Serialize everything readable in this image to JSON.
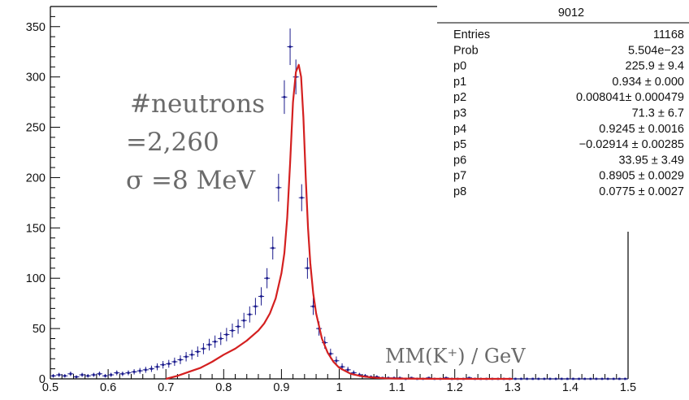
{
  "chart_data": {
    "type": "histogram-with-fit",
    "title": "",
    "xlabel": "MM(K⁺) / GeV",
    "ylabel": "",
    "xlim": [
      0.5,
      1.5
    ],
    "ylim": [
      0,
      370
    ],
    "x_ticks": [
      "0.5",
      "0.6",
      "0.7",
      "0.8",
      "0.9",
      "1",
      "1.1",
      "1.2",
      "1.3",
      "1.4",
      "1.5"
    ],
    "y_ticks": [
      "0",
      "50",
      "100",
      "150",
      "200",
      "250",
      "300",
      "350"
    ],
    "grid": false,
    "histogram": {
      "color": "#1a1a8c",
      "x": [
        0.505,
        0.515,
        0.525,
        0.535,
        0.545,
        0.555,
        0.565,
        0.575,
        0.585,
        0.595,
        0.605,
        0.615,
        0.625,
        0.635,
        0.645,
        0.655,
        0.665,
        0.675,
        0.685,
        0.695,
        0.705,
        0.715,
        0.725,
        0.735,
        0.745,
        0.755,
        0.765,
        0.775,
        0.785,
        0.795,
        0.805,
        0.815,
        0.825,
        0.835,
        0.845,
        0.855,
        0.865,
        0.875,
        0.885,
        0.895,
        0.905,
        0.915,
        0.925,
        0.935,
        0.945,
        0.955,
        0.965,
        0.975,
        0.985,
        0.995,
        1.005,
        1.015,
        1.025,
        1.035,
        1.045,
        1.055,
        1.065,
        1.075,
        1.085,
        1.095,
        1.105,
        1.115,
        1.125,
        1.135,
        1.145,
        1.155,
        1.165,
        1.175,
        1.185,
        1.195,
        1.205,
        1.215,
        1.225,
        1.235,
        1.245,
        1.255,
        1.265,
        1.275,
        1.285,
        1.295,
        1.305,
        1.315,
        1.325,
        1.335,
        1.345,
        1.355,
        1.365,
        1.375,
        1.385,
        1.395,
        1.405,
        1.415,
        1.425,
        1.435,
        1.445,
        1.455,
        1.465,
        1.475,
        1.485,
        1.495
      ],
      "y": [
        3,
        4,
        3,
        5,
        2,
        4,
        3,
        4,
        5,
        3,
        4,
        6,
        5,
        6,
        7,
        8,
        9,
        10,
        12,
        14,
        15,
        17,
        19,
        22,
        24,
        27,
        30,
        34,
        37,
        40,
        44,
        48,
        52,
        58,
        64,
        72,
        82,
        100,
        130,
        190,
        280,
        330,
        300,
        180,
        110,
        72,
        50,
        36,
        25,
        18,
        12,
        9,
        6,
        4,
        3,
        2,
        2,
        1,
        1,
        1,
        1,
        0,
        1,
        0,
        0,
        1,
        0,
        0,
        1,
        0,
        0,
        0,
        1,
        0,
        0,
        0,
        0,
        0,
        0,
        0,
        0,
        0,
        0,
        0,
        0,
        0,
        0,
        0,
        0,
        0,
        0,
        0,
        0,
        0,
        0,
        0,
        0,
        0,
        0,
        0
      ]
    },
    "fit": {
      "color": "#d42020",
      "x": [
        0.7,
        0.72,
        0.74,
        0.76,
        0.78,
        0.8,
        0.82,
        0.84,
        0.86,
        0.87,
        0.88,
        0.89,
        0.9,
        0.905,
        0.91,
        0.915,
        0.92,
        0.925,
        0.93,
        0.934,
        0.938,
        0.942,
        0.946,
        0.95,
        0.955,
        0.96,
        0.97,
        0.98,
        0.99,
        1.0,
        1.02,
        1.04,
        1.06,
        1.08,
        1.1,
        1.15,
        1.2,
        1.25,
        1.3
      ],
      "y": [
        0,
        3,
        7,
        11,
        17,
        24,
        30,
        38,
        48,
        55,
        65,
        80,
        105,
        125,
        160,
        215,
        275,
        305,
        312,
        300,
        260,
        200,
        150,
        115,
        85,
        65,
        40,
        26,
        17,
        11,
        5,
        2.5,
        1.2,
        0.6,
        0.3,
        0.1,
        0,
        0,
        0
      ]
    },
    "annotations": [
      "#neutrons",
      "=2,260",
      "σ =8 MeV"
    ],
    "stats_box": {
      "title": "9012",
      "rows": [
        {
          "label": "Entries",
          "value": "11168"
        },
        {
          "label": "Prob",
          "value": "5.504e−23"
        },
        {
          "label": "p0",
          "value": "225.9 ± 9.4"
        },
        {
          "label": "p1",
          "value": "0.934 ± 0.000"
        },
        {
          "label": "p2",
          "value": "0.008041± 0.000479"
        },
        {
          "label": "p3",
          "value": "71.3 ± 6.7"
        },
        {
          "label": "p4",
          "value": "0.9245 ± 0.0016"
        },
        {
          "label": "p5",
          "value": "−0.02914 ± 0.00285"
        },
        {
          "label": "p6",
          "value": "33.95 ± 3.49"
        },
        {
          "label": "p7",
          "value": "0.8905 ± 0.0029"
        },
        {
          "label": "p8",
          "value": "0.0775 ± 0.0027"
        }
      ]
    }
  }
}
